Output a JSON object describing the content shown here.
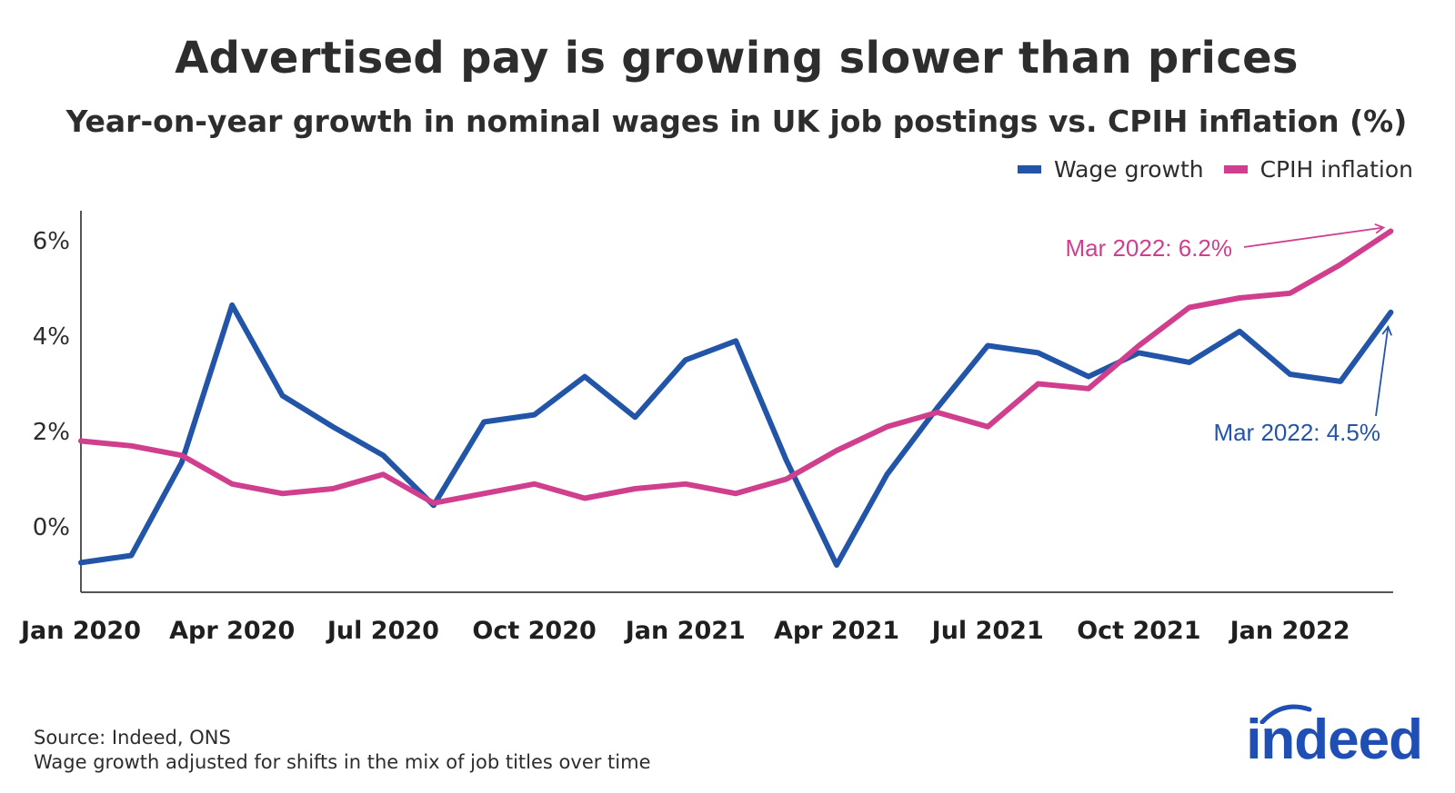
{
  "title": "Advertised pay is growing slower than prices",
  "subtitle": "Year-on-year growth in nominal wages in UK job postings vs. CPIH inflation (%)",
  "colors": {
    "wage": "#2255a8",
    "cpih": "#d03f8e",
    "text": "#2d2d2d",
    "axis": "#555555",
    "brand": "#1f4fb5"
  },
  "chart_data": {
    "type": "line",
    "x": [
      "Jan 2020",
      "Feb 2020",
      "Mar 2020",
      "Apr 2020",
      "May 2020",
      "Jun 2020",
      "Jul 2020",
      "Aug 2020",
      "Sep 2020",
      "Oct 2020",
      "Nov 2020",
      "Dec 2020",
      "Jan 2021",
      "Feb 2021",
      "Mar 2021",
      "Apr 2021",
      "May 2021",
      "Jun 2021",
      "Jul 2021",
      "Aug 2021",
      "Sep 2021",
      "Oct 2021",
      "Nov 2021",
      "Dec 2021",
      "Jan 2022",
      "Feb 2022",
      "Mar 2022"
    ],
    "x_ticks": [
      "Jan 2020",
      "Apr 2020",
      "Jul 2020",
      "Oct 2020",
      "Jan 2021",
      "Apr 2021",
      "Jul 2021",
      "Oct 2021",
      "Jan 2022"
    ],
    "y_ticks": [
      "0%",
      "2%",
      "4%",
      "6%"
    ],
    "ylim": [
      -1.3,
      6.6
    ],
    "series": [
      {
        "name": "Wage growth",
        "values": [
          -0.75,
          -0.6,
          1.35,
          4.65,
          2.75,
          2.1,
          1.5,
          0.45,
          2.2,
          2.35,
          3.15,
          2.3,
          3.5,
          3.9,
          1.4,
          -0.8,
          1.1,
          2.5,
          3.8,
          3.65,
          3.15,
          3.65,
          3.45,
          4.1,
          3.2,
          3.05,
          4.5
        ]
      },
      {
        "name": "CPIH inflation",
        "values": [
          1.8,
          1.7,
          1.5,
          0.9,
          0.7,
          0.8,
          1.1,
          0.5,
          0.7,
          0.9,
          0.6,
          0.8,
          0.9,
          0.7,
          1.0,
          1.6,
          2.1,
          2.4,
          2.1,
          3.0,
          2.9,
          3.8,
          4.6,
          4.8,
          4.9,
          5.5,
          6.2
        ]
      }
    ],
    "annotations": [
      {
        "text": "Mar 2022: 6.2%",
        "series": "CPIH inflation",
        "x": "Mar 2022",
        "y": 6.2
      },
      {
        "text": "Mar 2022: 4.5%",
        "series": "Wage growth",
        "x": "Mar 2022",
        "y": 4.5
      }
    ],
    "legend_placement": "top-right",
    "grid": false
  },
  "footer": {
    "source": "Source: Indeed, ONS",
    "note": "Wage growth adjusted for shifts in the mix of job titles over time"
  },
  "logo": {
    "text": "indeed"
  }
}
